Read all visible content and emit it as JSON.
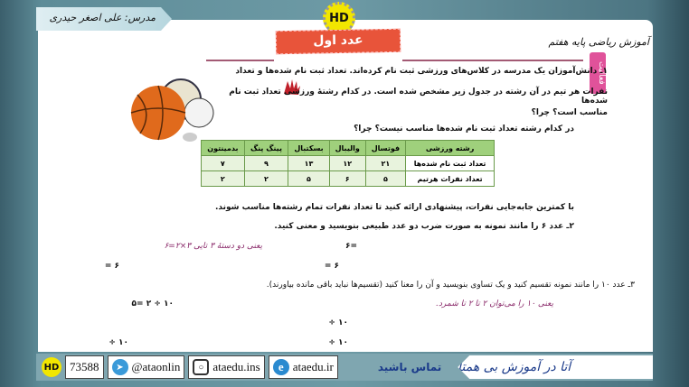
{
  "header": {
    "teacher": "مدرس: علی اصغر حیدری",
    "logo": "HD",
    "lesson_title": "عدد اول",
    "subject": "آموزش ریاضی پایه هفتم",
    "activity_tag": "فعالیت"
  },
  "q1": {
    "line1": "۱ـ دانش‌آموزان یک مدرسه در کلاس‌های ورزشی ثبت نام کرده‌اند. تعداد ثبت نام شده‌ها و تعداد",
    "line2": "نفرات هر تیم در آن رشته در جدول زیر مشخص شده است. در کدام رشتهٔ ورزشی تعداد ثبت نام شده‌ها",
    "line3": "مناسب است؟ چرا؟",
    "line4": "در کدام رشته تعداد ثبت نام شده‌ها مناسب نیست؟ چرا؟",
    "table": {
      "headers": [
        "رشته ورزشی",
        "فوتسال",
        "والیبال",
        "بسکتبال",
        "پینگ پنگ",
        "بدمینتون"
      ],
      "rows": [
        [
          "تعداد ثبت نام شده‌ها",
          "۲۱",
          "۱۲",
          "۱۳",
          "۹",
          "۷"
        ],
        [
          "تعداد نفرات هرتیم",
          "۵",
          "۶",
          "۵",
          "۲",
          "۲"
        ]
      ]
    },
    "line5": "با کمترین جابه‌جایی نفرات، پیشنهادی ارائه کنید تا تعداد نفرات تمام رشته‌ها مناسب شوند."
  },
  "q2": {
    "prompt": "۲ـ عدد ۶ را مانند نمونه به صورت ضرب دو عدد طبیعی بنویسید و معنی کنید.",
    "example": "یعنی دو دستهٔ ۳ تایی ۳×۲=۶",
    "blank": "=۶",
    "blank2": "۶ =",
    "blank3": "۶ ="
  },
  "q3": {
    "prompt": "۳ـ عدد ۱۰ را مانند نمونه تقسیم کنید و یک تساوی بنویسید و آن را معنا کنید (تقسیم‌ها نباید باقی مانده بیاورند).",
    "example_eq": "۱۰ ÷ ۲ =۵",
    "example_text": "یعنی ۱۰ را می‌توان ۲ تا ۲ تا شمرد.",
    "blank": "۱۰ ÷"
  },
  "footer": {
    "phone": "73588",
    "telegram": "@ataonlin",
    "instagram": "ataedu.ins",
    "website": "ataedu.ir",
    "contact": "تماس باشید",
    "slogan": "آتا در آموزش بی همتا"
  }
}
